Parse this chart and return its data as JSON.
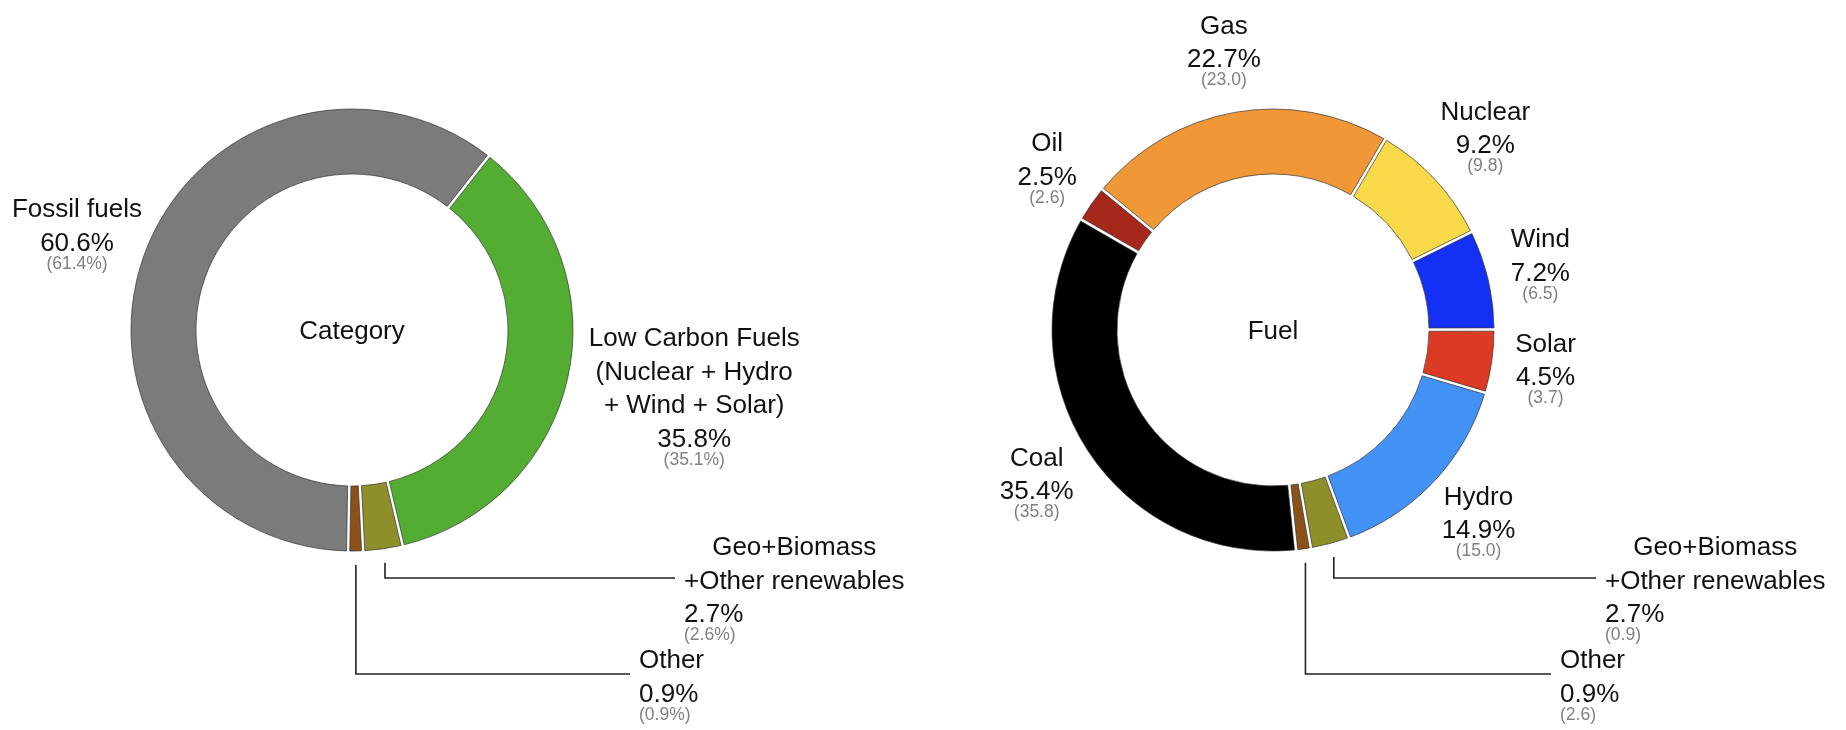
{
  "chart_data": [
    {
      "type": "donut",
      "title": "Category",
      "categories": [
        "Fossil fuels",
        "Low Carbon Fuels (Nuclear + Hydro + Wind + Solar)",
        "Geo+Biomass +Other renewables",
        "Other"
      ],
      "values": [
        60.6,
        35.8,
        2.7,
        0.9
      ],
      "colors": [
        "#7b7b7b",
        "#53ad33",
        "#8e8e2b",
        "#8c5119"
      ],
      "value_labels": [
        "60.6%",
        "35.8%",
        "2.7%",
        "0.9%"
      ],
      "annotations": [
        "(61.4%)",
        "(35.1%)",
        "(2.6%)",
        "(0.9%)"
      ]
    },
    {
      "type": "donut",
      "title": "Fuel",
      "categories": [
        "Coal",
        "Oil",
        "Gas",
        "Nuclear",
        "Wind",
        "Solar",
        "Hydro",
        "Geo+Biomass +Other renewables",
        "Other"
      ],
      "values": [
        35.4,
        2.5,
        22.7,
        9.2,
        7.2,
        4.5,
        14.9,
        2.7,
        0.9
      ],
      "colors": [
        "#000000",
        "#a6281a",
        "#f09837",
        "#f7d94a",
        "#1530f5",
        "#db3b24",
        "#4291f5",
        "#8e8e2b",
        "#8c5119"
      ],
      "value_labels": [
        "35.4%",
        "2.5%",
        "22.7%",
        "9.2%",
        "7.2%",
        "4.5%",
        "14.9%",
        "2.7%",
        "0.9%"
      ],
      "annotations": [
        "(35.8)",
        "(2.6)",
        "(23.0)",
        "(9.8)",
        "(6.5)",
        "(3.7)",
        "(15.0)",
        "(0.9)",
        "(2.6)"
      ]
    }
  ]
}
